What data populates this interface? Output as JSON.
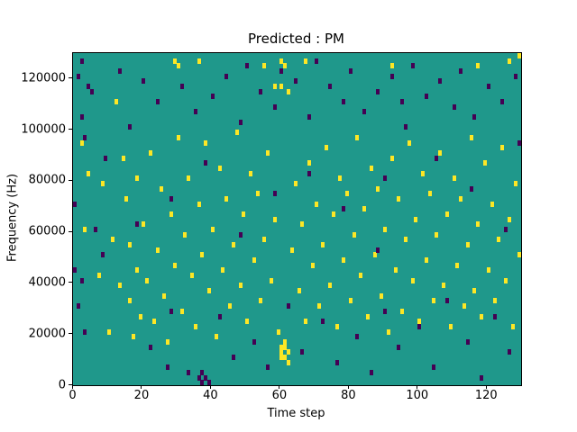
{
  "figure": {
    "title": "Predicted : PM",
    "xlabel": "Time step",
    "ylabel": "Frequency (Hz)"
  },
  "chart_data": {
    "type": "heatmap",
    "title": "Predicted : PM",
    "xlabel": "Time step",
    "ylabel": "Frequency (Hz)",
    "x_range": [
      0,
      130
    ],
    "y_range": [
      0,
      130000
    ],
    "x_ticks": [
      0,
      20,
      40,
      60,
      80,
      100,
      120
    ],
    "y_ticks": [
      0,
      20000,
      40000,
      60000,
      80000,
      100000,
      120000
    ],
    "bin_hz": 2000,
    "grid": false,
    "legend": "none",
    "colors": {
      "background": "#1f988b",
      "high": "#fde725",
      "low": "#440154"
    },
    "cells_high": [
      [
        2,
        47
      ],
      [
        3,
        30
      ],
      [
        4,
        41
      ],
      [
        7,
        21
      ],
      [
        8,
        39
      ],
      [
        10,
        10
      ],
      [
        11,
        28
      ],
      [
        12,
        55
      ],
      [
        13,
        19
      ],
      [
        14,
        44
      ],
      [
        15,
        36
      ],
      [
        16,
        16
      ],
      [
        16,
        27
      ],
      [
        17,
        9
      ],
      [
        18,
        22
      ],
      [
        18,
        40
      ],
      [
        19,
        13
      ],
      [
        20,
        31
      ],
      [
        21,
        20
      ],
      [
        22,
        45
      ],
      [
        23,
        12
      ],
      [
        24,
        26
      ],
      [
        25,
        38
      ],
      [
        26,
        17
      ],
      [
        27,
        8
      ],
      [
        28,
        33
      ],
      [
        29,
        23
      ],
      [
        29,
        63
      ],
      [
        30,
        48
      ],
      [
        30,
        62
      ],
      [
        31,
        14
      ],
      [
        32,
        29
      ],
      [
        33,
        40
      ],
      [
        34,
        21
      ],
      [
        35,
        11
      ],
      [
        36,
        35
      ],
      [
        36,
        63
      ],
      [
        37,
        25
      ],
      [
        38,
        47
      ],
      [
        39,
        18
      ],
      [
        40,
        30
      ],
      [
        41,
        9
      ],
      [
        42,
        42
      ],
      [
        43,
        22
      ],
      [
        44,
        36
      ],
      [
        45,
        15
      ],
      [
        46,
        27
      ],
      [
        47,
        49
      ],
      [
        48,
        19
      ],
      [
        49,
        33
      ],
      [
        50,
        12
      ],
      [
        51,
        41
      ],
      [
        52,
        24
      ],
      [
        53,
        37
      ],
      [
        54,
        16
      ],
      [
        55,
        28
      ],
      [
        55,
        62
      ],
      [
        56,
        45
      ],
      [
        57,
        20
      ],
      [
        58,
        32
      ],
      [
        58,
        58
      ],
      [
        59,
        10
      ],
      [
        60,
        5
      ],
      [
        60,
        6
      ],
      [
        60,
        7
      ],
      [
        60,
        58
      ],
      [
        60,
        63
      ],
      [
        61,
        5
      ],
      [
        61,
        7
      ],
      [
        61,
        8
      ],
      [
        61,
        62
      ],
      [
        62,
        4
      ],
      [
        62,
        6
      ],
      [
        62,
        57
      ],
      [
        63,
        26
      ],
      [
        64,
        39
      ],
      [
        65,
        18
      ],
      [
        66,
        31
      ],
      [
        67,
        12
      ],
      [
        67,
        63
      ],
      [
        68,
        43
      ],
      [
        69,
        23
      ],
      [
        70,
        35
      ],
      [
        71,
        15
      ],
      [
        72,
        27
      ],
      [
        73,
        46
      ],
      [
        74,
        19
      ],
      [
        75,
        33
      ],
      [
        76,
        11
      ],
      [
        77,
        40
      ],
      [
        78,
        24
      ],
      [
        79,
        37
      ],
      [
        80,
        16
      ],
      [
        81,
        29
      ],
      [
        82,
        48
      ],
      [
        83,
        21
      ],
      [
        84,
        34
      ],
      [
        85,
        13
      ],
      [
        86,
        42
      ],
      [
        87,
        25
      ],
      [
        88,
        38
      ],
      [
        89,
        17
      ],
      [
        90,
        30
      ],
      [
        91,
        10
      ],
      [
        92,
        44
      ],
      [
        92,
        62
      ],
      [
        93,
        22
      ],
      [
        94,
        36
      ],
      [
        95,
        14
      ],
      [
        96,
        28
      ],
      [
        97,
        47
      ],
      [
        98,
        20
      ],
      [
        99,
        32
      ],
      [
        100,
        12
      ],
      [
        101,
        41
      ],
      [
        102,
        24
      ],
      [
        103,
        37
      ],
      [
        104,
        16
      ],
      [
        105,
        29
      ],
      [
        106,
        45
      ],
      [
        107,
        19
      ],
      [
        108,
        33
      ],
      [
        109,
        11
      ],
      [
        110,
        40
      ],
      [
        111,
        23
      ],
      [
        112,
        36
      ],
      [
        113,
        15
      ],
      [
        114,
        27
      ],
      [
        115,
        48
      ],
      [
        116,
        18
      ],
      [
        117,
        31
      ],
      [
        117,
        62
      ],
      [
        118,
        13
      ],
      [
        119,
        43
      ],
      [
        120,
        22
      ],
      [
        121,
        35
      ],
      [
        122,
        16
      ],
      [
        123,
        28
      ],
      [
        124,
        46
      ],
      [
        125,
        20
      ],
      [
        126,
        32
      ],
      [
        126,
        63
      ],
      [
        127,
        11
      ],
      [
        128,
        39
      ],
      [
        129,
        25
      ],
      [
        129,
        64
      ]
    ],
    "cells_low": [
      [
        0,
        22
      ],
      [
        0,
        35
      ],
      [
        1,
        15
      ],
      [
        1,
        60
      ],
      [
        2,
        20
      ],
      [
        2,
        52
      ],
      [
        2,
        63
      ],
      [
        3,
        10
      ],
      [
        3,
        48
      ],
      [
        4,
        58
      ],
      [
        5,
        57
      ],
      [
        6,
        30
      ],
      [
        8,
        25
      ],
      [
        9,
        44
      ],
      [
        13,
        61
      ],
      [
        16,
        50
      ],
      [
        18,
        31
      ],
      [
        20,
        59
      ],
      [
        22,
        7
      ],
      [
        24,
        55
      ],
      [
        27,
        3
      ],
      [
        28,
        14
      ],
      [
        28,
        36
      ],
      [
        31,
        58
      ],
      [
        33,
        2
      ],
      [
        35,
        53
      ],
      [
        36,
        1
      ],
      [
        37,
        0
      ],
      [
        37,
        2
      ],
      [
        38,
        1
      ],
      [
        38,
        43
      ],
      [
        39,
        0
      ],
      [
        40,
        56
      ],
      [
        42,
        13
      ],
      [
        44,
        60
      ],
      [
        46,
        5
      ],
      [
        48,
        29
      ],
      [
        48,
        51
      ],
      [
        50,
        62
      ],
      [
        52,
        8
      ],
      [
        54,
        57
      ],
      [
        56,
        3
      ],
      [
        58,
        37
      ],
      [
        58,
        54
      ],
      [
        60,
        61
      ],
      [
        62,
        15
      ],
      [
        64,
        59
      ],
      [
        66,
        6
      ],
      [
        68,
        41
      ],
      [
        68,
        52
      ],
      [
        70,
        63
      ],
      [
        72,
        12
      ],
      [
        74,
        58
      ],
      [
        76,
        4
      ],
      [
        78,
        34
      ],
      [
        78,
        55
      ],
      [
        80,
        61
      ],
      [
        82,
        9
      ],
      [
        84,
        53
      ],
      [
        86,
        2
      ],
      [
        88,
        26
      ],
      [
        88,
        57
      ],
      [
        90,
        14
      ],
      [
        90,
        40
      ],
      [
        92,
        60
      ],
      [
        94,
        7
      ],
      [
        95,
        55
      ],
      [
        96,
        50
      ],
      [
        98,
        62
      ],
      [
        100,
        11
      ],
      [
        102,
        56
      ],
      [
        104,
        3
      ],
      [
        105,
        44
      ],
      [
        106,
        59
      ],
      [
        108,
        16
      ],
      [
        110,
        54
      ],
      [
        112,
        61
      ],
      [
        114,
        8
      ],
      [
        115,
        38
      ],
      [
        116,
        52
      ],
      [
        118,
        1
      ],
      [
        120,
        58
      ],
      [
        122,
        13
      ],
      [
        124,
        55
      ],
      [
        125,
        30
      ],
      [
        126,
        6
      ],
      [
        128,
        60
      ],
      [
        129,
        47
      ]
    ]
  }
}
